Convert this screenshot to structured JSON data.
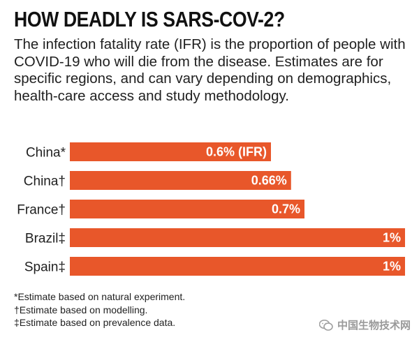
{
  "header": {
    "title": "HOW DEADLY IS SARS-COV-2?",
    "subtitle": "The infection fatality rate (IFR) is the proportion of people with COVID-19 who will die from the disease. Estimates are for specific regions, and can vary depending on demographics, health-care access and study methodology."
  },
  "chart_data": {
    "type": "bar",
    "orientation": "horizontal",
    "categories": [
      "China*",
      "China†",
      "France†",
      "Brazil‡",
      "Spain‡"
    ],
    "values": [
      0.6,
      0.66,
      0.7,
      1.0,
      1.0
    ],
    "value_labels": [
      "0.6% (IFR)",
      "0.66%",
      "0.7%",
      "1%",
      "1%"
    ],
    "unit": "%",
    "xlim": [
      0,
      1.0
    ],
    "grid": false,
    "bar_color": "#e8572a"
  },
  "footnotes": [
    "*Estimate based on natural experiment.",
    "†Estimate based on modelling.",
    "‡Estimate based on prevalence data."
  ],
  "watermark": {
    "text": "中国生物技术网",
    "icon": "wechat-icon"
  }
}
